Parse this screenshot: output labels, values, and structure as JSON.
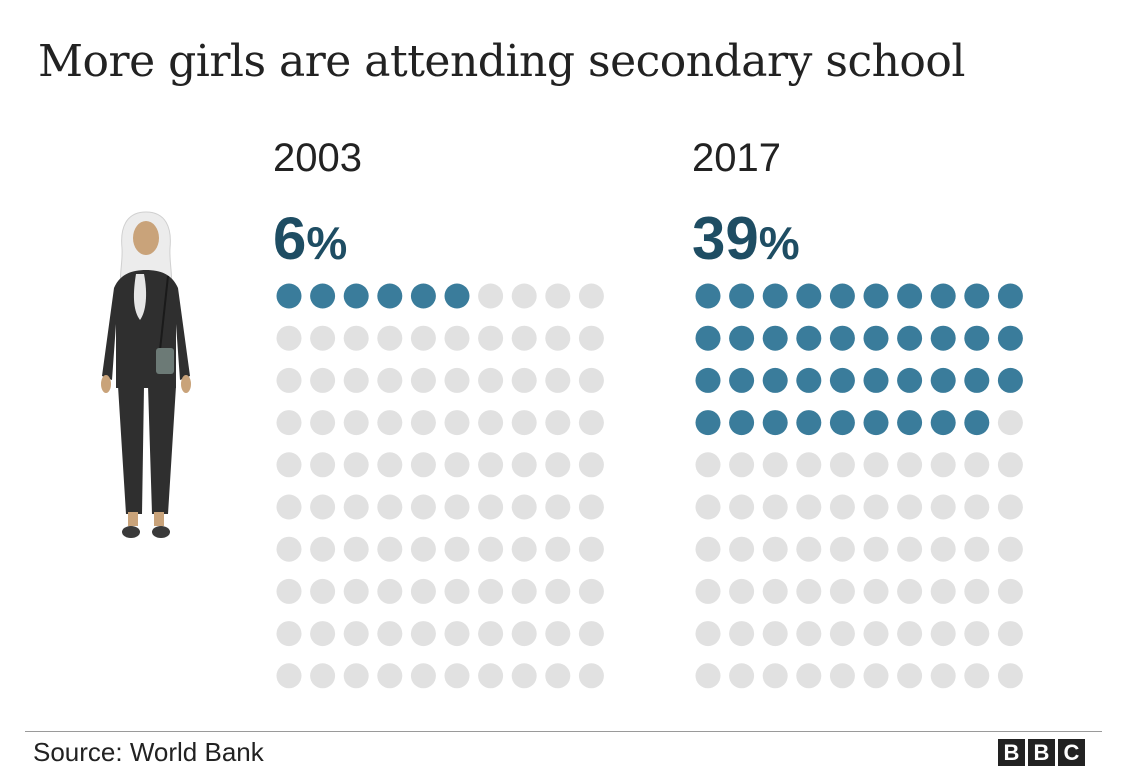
{
  "title": "More girls are attending secondary school",
  "source": "Source: World Bank",
  "logo": [
    "B",
    "B",
    "C"
  ],
  "colors": {
    "filled": "#3a7c9b",
    "empty": "#e1e1e1",
    "percent_text": "#1e4d63"
  },
  "chart_data": {
    "type": "waffle",
    "title": "More girls are attending secondary school",
    "total_dots": 100,
    "panels": [
      {
        "year": "2003",
        "value": 6,
        "value_label": "6",
        "unit": "%"
      },
      {
        "year": "2017",
        "value": 39,
        "value_label": "39",
        "unit": "%"
      }
    ]
  }
}
